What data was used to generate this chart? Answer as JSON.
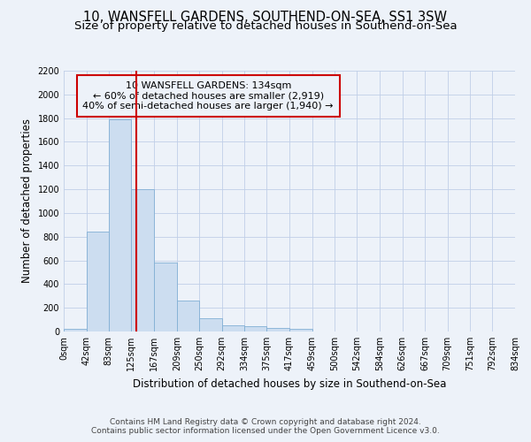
{
  "title": "10, WANSFELL GARDENS, SOUTHEND-ON-SEA, SS1 3SW",
  "subtitle": "Size of property relative to detached houses in Southend-on-Sea",
  "xlabel": "Distribution of detached houses by size in Southend-on-Sea",
  "ylabel": "Number of detached properties",
  "footer_line1": "Contains HM Land Registry data © Crown copyright and database right 2024.",
  "footer_line2": "Contains public sector information licensed under the Open Government Licence v3.0.",
  "annotation_line1": "10 WANSFELL GARDENS: 134sqm",
  "annotation_line2": "← 60% of detached houses are smaller (2,919)",
  "annotation_line3": "40% of semi-detached houses are larger (1,940) →",
  "bar_edges": [
    0,
    42,
    83,
    125,
    167,
    209,
    250,
    292,
    334,
    375,
    417,
    459,
    500,
    542,
    584,
    626,
    667,
    709,
    751,
    792,
    834
  ],
  "bar_heights": [
    25,
    845,
    1790,
    1200,
    585,
    260,
    115,
    50,
    45,
    30,
    20,
    0,
    0,
    0,
    0,
    0,
    0,
    0,
    0,
    0
  ],
  "bar_color": "#ccddf0",
  "bar_edgecolor": "#82afd4",
  "grid_color": "#c0cfe8",
  "vline_color": "#cc0000",
  "vline_x": 134,
  "ylim": [
    0,
    2200
  ],
  "yticks": [
    0,
    200,
    400,
    600,
    800,
    1000,
    1200,
    1400,
    1600,
    1800,
    2000,
    2200
  ],
  "bg_color": "#edf2f9",
  "title_fontsize": 10.5,
  "subtitle_fontsize": 9.5,
  "ylabel_fontsize": 8.5,
  "xlabel_fontsize": 8.5,
  "annotation_box_edgecolor": "#cc0000",
  "annotation_fontsize": 8.0,
  "tick_fontsize": 7.0,
  "footer_fontsize": 6.5
}
